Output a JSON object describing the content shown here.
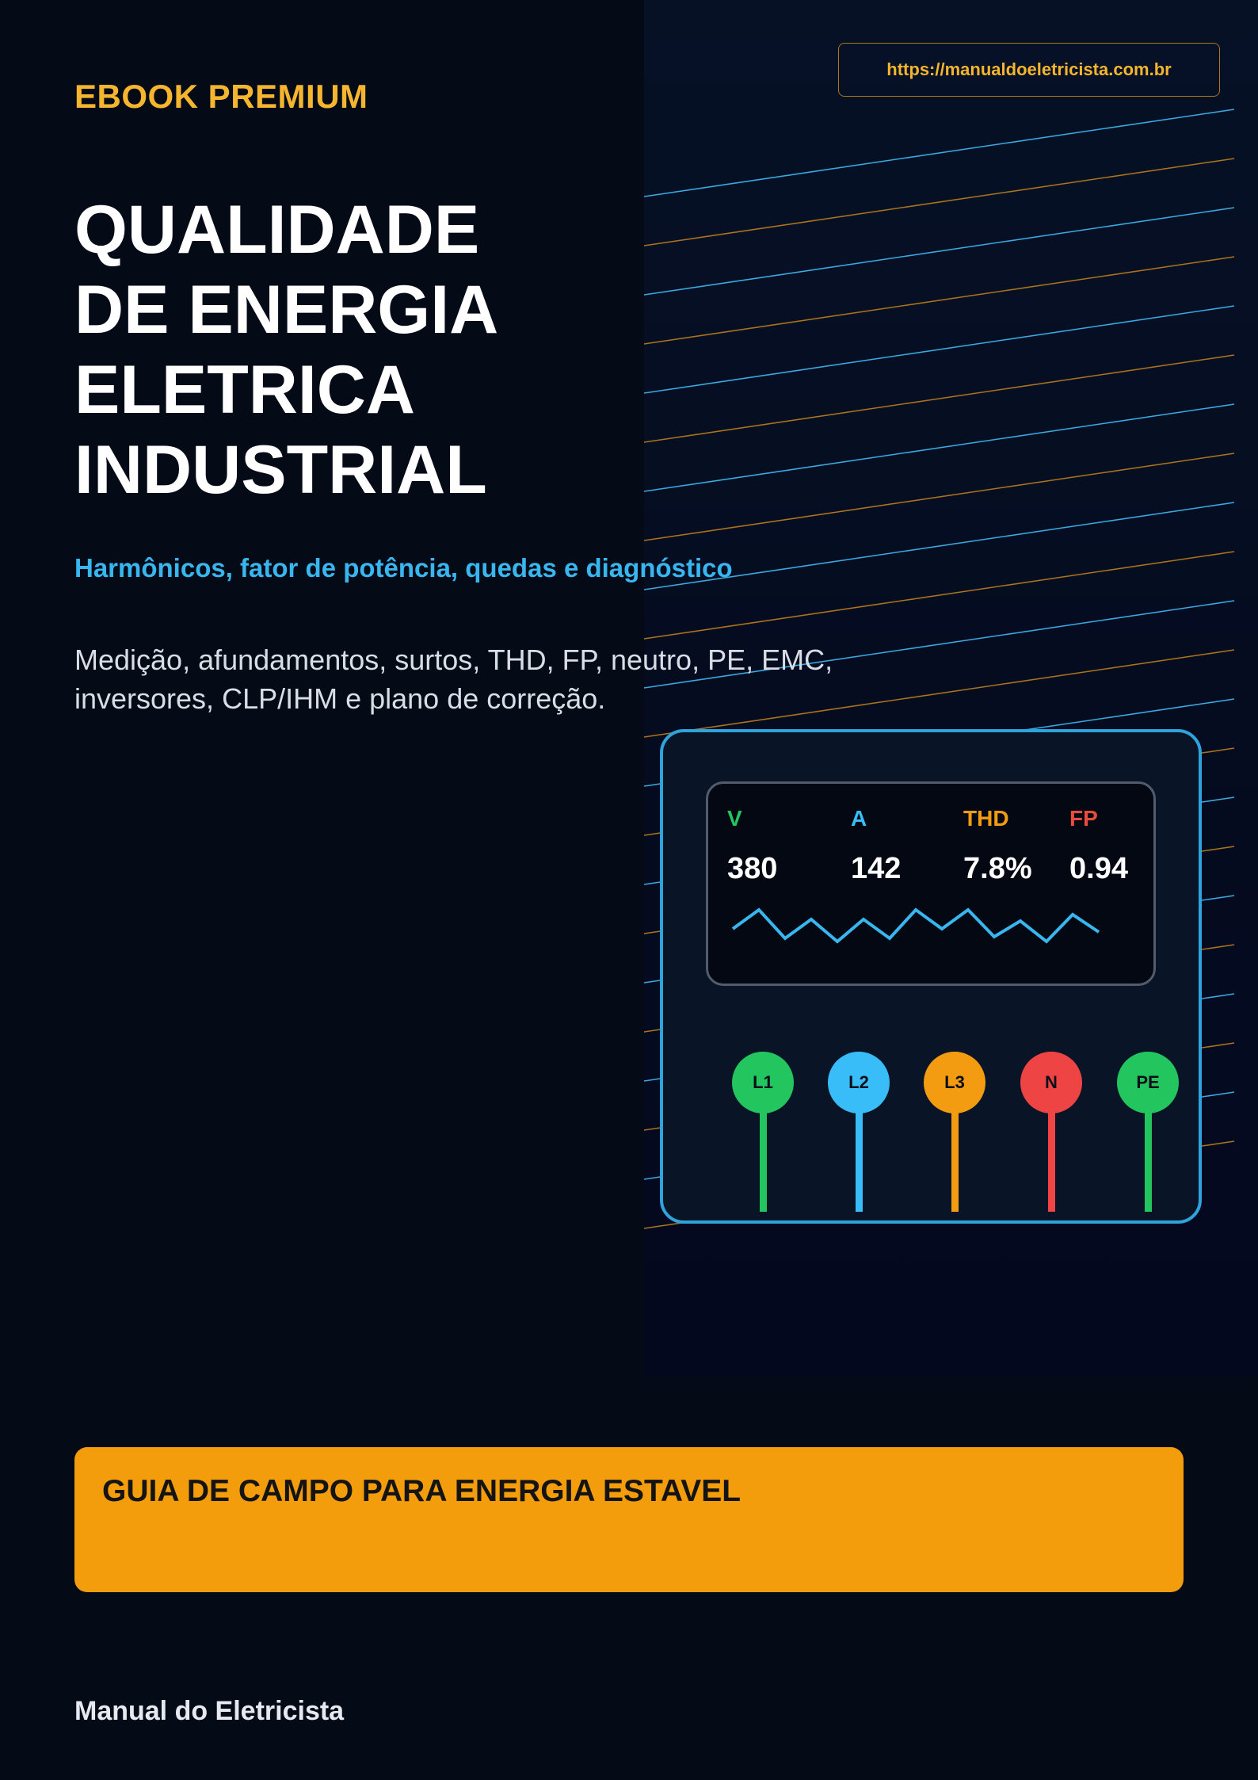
{
  "header": {
    "label": "EBOOK PREMIUM",
    "url": "https://manualdoeletricista.com.br"
  },
  "title": {
    "lines": [
      "QUALIDADE",
      "DE ENERGIA",
      "ELETRICA",
      "INDUSTRIAL"
    ]
  },
  "subtitle": "Harmônicos, fator de potência, quedas e diagnóstico",
  "description": "Medição, afundamentos, surtos, THD, FP, neutro, PE, EMC, inversores, CLP/IHM e plano de correção.",
  "meter": {
    "readings": [
      {
        "label": "V",
        "value": "380",
        "color": "#22c55e"
      },
      {
        "label": "A",
        "value": "142",
        "color": "#38bdf8"
      },
      {
        "label": "THD",
        "value": "7.8%",
        "color": "#f39c12"
      },
      {
        "label": "FP",
        "value": "0.94",
        "color": "#e74c3c"
      }
    ],
    "terminals": [
      {
        "label": "L1",
        "color": "#22c55e"
      },
      {
        "label": "L2",
        "color": "#38bdf8"
      },
      {
        "label": "L3",
        "color": "#f39c12"
      },
      {
        "label": "N",
        "color": "#ef4444"
      },
      {
        "label": "PE",
        "color": "#22c55e"
      }
    ]
  },
  "banner": {
    "text": "GUIA DE CAMPO PARA ENERGIA ESTAVEL",
    "color": "#f39c0c"
  },
  "footer": "Manual do Eletricista",
  "colors": {
    "background": "#050a17",
    "accent_gold": "#f5b52e",
    "accent_blue": "#38b6f0"
  }
}
